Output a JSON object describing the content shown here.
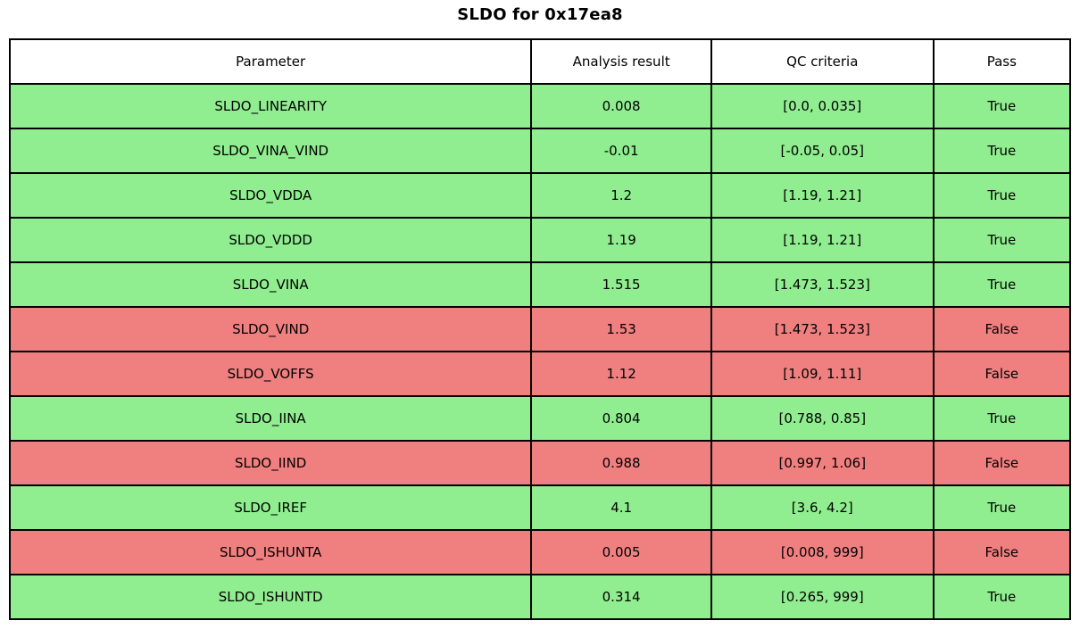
{
  "title": "SLDO for 0x17ea8",
  "colors": {
    "pass_row": "#90ee90",
    "fail_row": "#f08080",
    "header_bg": "#ffffff",
    "border": "#000000",
    "text": "#000000"
  },
  "chart_data": {
    "type": "table",
    "title": "SLDO for 0x17ea8",
    "columns": [
      "Parameter",
      "Analysis result",
      "QC criteria",
      "Pass"
    ],
    "rows": [
      {
        "parameter": "SLDO_LINEARITY",
        "result": "0.008",
        "criteria": "[0.0, 0.035]",
        "pass": "True"
      },
      {
        "parameter": "SLDO_VINA_VIND",
        "result": "-0.01",
        "criteria": "[-0.05, 0.05]",
        "pass": "True"
      },
      {
        "parameter": "SLDO_VDDA",
        "result": "1.2",
        "criteria": "[1.19, 1.21]",
        "pass": "True"
      },
      {
        "parameter": "SLDO_VDDD",
        "result": "1.19",
        "criteria": "[1.19, 1.21]",
        "pass": "True"
      },
      {
        "parameter": "SLDO_VINA",
        "result": "1.515",
        "criteria": "[1.473, 1.523]",
        "pass": "True"
      },
      {
        "parameter": "SLDO_VIND",
        "result": "1.53",
        "criteria": "[1.473, 1.523]",
        "pass": "False"
      },
      {
        "parameter": "SLDO_VOFFS",
        "result": "1.12",
        "criteria": "[1.09, 1.11]",
        "pass": "False"
      },
      {
        "parameter": "SLDO_IINA",
        "result": "0.804",
        "criteria": "[0.788, 0.85]",
        "pass": "True"
      },
      {
        "parameter": "SLDO_IIND",
        "result": "0.988",
        "criteria": "[0.997, 1.06]",
        "pass": "False"
      },
      {
        "parameter": "SLDO_IREF",
        "result": "4.1",
        "criteria": "[3.6, 4.2]",
        "pass": "True"
      },
      {
        "parameter": "SLDO_ISHUNTA",
        "result": "0.005",
        "criteria": "[0.008, 999]",
        "pass": "False"
      },
      {
        "parameter": "SLDO_ISHUNTD",
        "result": "0.314",
        "criteria": "[0.265, 999]",
        "pass": "True"
      }
    ],
    "legend": "row background green = pass (True), red = fail (False)"
  }
}
